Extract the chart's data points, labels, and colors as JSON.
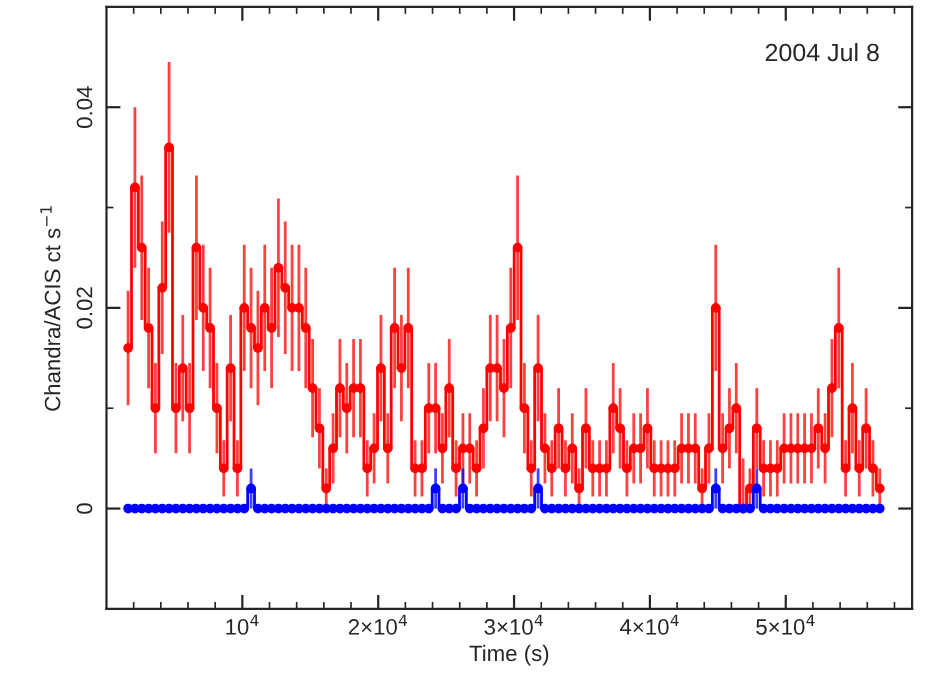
{
  "chart_data": {
    "type": "step",
    "xlabel": "Time (s)",
    "ylabel": "Chandra/ACIS ct s$^{−1}$",
    "annotations": [
      "2004 Jul 8"
    ],
    "x": [
      1590,
      2093,
      2596,
      3099,
      3602,
      4105,
      4608,
      5111,
      5614,
      6117,
      6620,
      7123,
      7626,
      8129,
      8632,
      9135,
      9638,
      10141,
      10644,
      11147,
      11650,
      12153,
      12656,
      13159,
      13662,
      14165,
      14668,
      15171,
      15674,
      16177,
      16680,
      17183,
      17686,
      18189,
      18692,
      19195,
      19698,
      20201,
      20704,
      21207,
      21710,
      22213,
      22716,
      23219,
      23722,
      24225,
      24728,
      25231,
      25734,
      26237,
      26740,
      27243,
      27746,
      28249,
      28752,
      29255,
      29758,
      30261,
      30764,
      31267,
      31770,
      32273,
      32776,
      33279,
      33782,
      34285,
      34788,
      35291,
      35794,
      36297,
      36800,
      37303,
      37806,
      38309,
      38812,
      39315,
      39818,
      40321,
      40824,
      41327,
      41830,
      42333,
      42836,
      43339,
      43842,
      44345,
      44848,
      45351,
      45854,
      46357,
      46860,
      47363,
      47866,
      48369,
      48872,
      49375,
      49878,
      50381,
      50884,
      51387,
      51890,
      52393,
      52896,
      53399,
      53902,
      54405,
      54908,
      55411,
      55914,
      56417,
      56920
    ],
    "series": [
      {
        "color": "#ff0000",
        "values": [
          0.016,
          0.032,
          0.026,
          0.018,
          0.01,
          0.022,
          0.036,
          0.01,
          0.014,
          0.01,
          0.026,
          0.02,
          0.018,
          0.01,
          0.004,
          0.014,
          0.004,
          0.02,
          0.018,
          0.016,
          0.02,
          0.018,
          0.024,
          0.022,
          0.02,
          0.02,
          0.018,
          0.012,
          0.008,
          0.002,
          0.006,
          0.012,
          0.01,
          0.012,
          0.012,
          0.004,
          0.006,
          0.014,
          0.006,
          0.018,
          0.014,
          0.018,
          0.004,
          0.004,
          0.01,
          0.01,
          0.006,
          0.012,
          0.004,
          0.006,
          0.006,
          0.004,
          0.008,
          0.014,
          0.014,
          0.012,
          0.018,
          0.026,
          0.01,
          0.004,
          0.014,
          0.006,
          0.004,
          0.008,
          0.004,
          0.006,
          0.002,
          0.008,
          0.004,
          0.004,
          0.004,
          0.01,
          0.008,
          0.004,
          0.006,
          0.006,
          0.008,
          0.004,
          0.004,
          0.004,
          0.004,
          0.006,
          0.006,
          0.006,
          0.002,
          0.006,
          0.02,
          0.006,
          0.008,
          0.01,
          0,
          0.002,
          0.008,
          0.004,
          0.004,
          0.004,
          0.006,
          0.006,
          0.006,
          0.006,
          0.006,
          0.008,
          0.006,
          0.012,
          0.018,
          0.004,
          0.01,
          0.004,
          0.008,
          0.004,
          0.002
        ],
        "errors": [
          0.0057,
          0.008,
          0.0072,
          0.006,
          0.0045,
          0.0066,
          0.0085,
          0.0045,
          0.0053,
          0.0045,
          0.0072,
          0.0063,
          0.006,
          0.0045,
          0.0028,
          0.0053,
          0.0028,
          0.0063,
          0.006,
          0.0057,
          0.0063,
          0.006,
          0.0069,
          0.0066,
          0.0063,
          0.0063,
          0.006,
          0.0049,
          0.004,
          0.002,
          0.0035,
          0.0049,
          0.0045,
          0.0049,
          0.0049,
          0.0028,
          0.0035,
          0.0053,
          0.0035,
          0.006,
          0.0053,
          0.006,
          0.0028,
          0.0028,
          0.0045,
          0.0045,
          0.0035,
          0.0049,
          0.0028,
          0.0035,
          0.0035,
          0.0028,
          0.004,
          0.0053,
          0.0053,
          0.0049,
          0.006,
          0.0072,
          0.0045,
          0.0028,
          0.0053,
          0.0035,
          0.0028,
          0.004,
          0.0028,
          0.0035,
          0.002,
          0.004,
          0.0028,
          0.0028,
          0.0028,
          0.0045,
          0.004,
          0.0028,
          0.0035,
          0.0035,
          0.004,
          0.0028,
          0.0028,
          0.0028,
          0.0028,
          0.0035,
          0.0035,
          0.0035,
          0.002,
          0.0035,
          0.0063,
          0.0035,
          0.004,
          0.0045,
          [
            0,
            0.005
          ],
          0.002,
          0.004,
          0.0028,
          0.0028,
          0.0028,
          0.0035,
          0.0035,
          0.0035,
          0.0035,
          0.0035,
          0.004,
          0.0035,
          0.0049,
          0.006,
          0.0028,
          0.0045,
          0.0028,
          0.004,
          0.0028,
          0.002
        ]
      },
      {
        "color": "#0000ff",
        "values": [
          0,
          0,
          0,
          0,
          0,
          0,
          0,
          0,
          0,
          0,
          0,
          0,
          0,
          0,
          0,
          0,
          0,
          0,
          0.002,
          0,
          0,
          0,
          0,
          0,
          0,
          0,
          0,
          0,
          0,
          0,
          0,
          0,
          0,
          0,
          0,
          0,
          0,
          0,
          0,
          0,
          0,
          0,
          0,
          0,
          0,
          0.002,
          0,
          0,
          0,
          0.002,
          0,
          0,
          0,
          0,
          0,
          0,
          0,
          0,
          0,
          0,
          0.002,
          0,
          0,
          0,
          0,
          0,
          0,
          0,
          0,
          0,
          0,
          0,
          0,
          0,
          0,
          0,
          0,
          0,
          0,
          0,
          0,
          0,
          0,
          0,
          0,
          0,
          0.002,
          0,
          0,
          0,
          0,
          0,
          0.002,
          0,
          0,
          0,
          0,
          0,
          0,
          0,
          0,
          0,
          0,
          0,
          0,
          0,
          0,
          0,
          0,
          0,
          0
        ],
        "errors": [
          null,
          null,
          null,
          null,
          null,
          null,
          null,
          null,
          null,
          null,
          null,
          null,
          null,
          null,
          null,
          null,
          null,
          null,
          0.002,
          null,
          null,
          null,
          null,
          null,
          null,
          null,
          null,
          null,
          null,
          null,
          null,
          null,
          null,
          null,
          null,
          null,
          null,
          null,
          null,
          null,
          null,
          null,
          null,
          null,
          null,
          0.002,
          null,
          null,
          null,
          0.002,
          null,
          null,
          null,
          null,
          null,
          null,
          null,
          null,
          null,
          null,
          0.002,
          null,
          null,
          null,
          null,
          null,
          null,
          null,
          null,
          null,
          null,
          null,
          null,
          null,
          null,
          null,
          null,
          null,
          null,
          null,
          null,
          null,
          null,
          null,
          null,
          null,
          0.002,
          null,
          null,
          null,
          null,
          null,
          0.002,
          null,
          null,
          null,
          null,
          null,
          null,
          null,
          null,
          null,
          null,
          null,
          null,
          null,
          null,
          null,
          null,
          null,
          null
        ]
      }
    ],
    "xlim": [
      0,
      59300
    ],
    "ylim": [
      -0.01,
      0.05
    ],
    "xticks": [
      {
        "value": 2000,
        "label": null
      },
      {
        "value": 4000,
        "label": null
      },
      {
        "value": 6000,
        "label": null
      },
      {
        "value": 8000,
        "label": null
      },
      {
        "value": 10000,
        "label": "10$^{4}$"
      },
      {
        "value": 12000,
        "label": null
      },
      {
        "value": 14000,
        "label": null
      },
      {
        "value": 16000,
        "label": null
      },
      {
        "value": 18000,
        "label": null
      },
      {
        "value": 20000,
        "label": "2×10$^{4}$"
      },
      {
        "value": 22000,
        "label": null
      },
      {
        "value": 24000,
        "label": null
      },
      {
        "value": 26000,
        "label": null
      },
      {
        "value": 28000,
        "label": null
      },
      {
        "value": 30000,
        "label": "3×10$^{4}$"
      },
      {
        "value": 32000,
        "label": null
      },
      {
        "value": 34000,
        "label": null
      },
      {
        "value": 36000,
        "label": null
      },
      {
        "value": 38000,
        "label": null
      },
      {
        "value": 40000,
        "label": "4×10$^{4}$"
      },
      {
        "value": 42000,
        "label": null
      },
      {
        "value": 44000,
        "label": null
      },
      {
        "value": 46000,
        "label": null
      },
      {
        "value": 48000,
        "label": null
      },
      {
        "value": 50000,
        "label": "5×10$^{4}$"
      },
      {
        "value": 52000,
        "label": null
      },
      {
        "value": 54000,
        "label": null
      },
      {
        "value": 56000,
        "label": null
      },
      {
        "value": 58000,
        "label": null
      }
    ],
    "yticks": [
      0,
      {
        "value": 0.01,
        "label": null
      },
      {
        "value": 0.02,
        "label": "0.02"
      },
      {
        "value": 0.03,
        "label": null
      },
      {
        "value": 0.04,
        "label": "0.04"
      }
    ],
    "marker": "circle",
    "grid": false,
    "legend": false
  }
}
